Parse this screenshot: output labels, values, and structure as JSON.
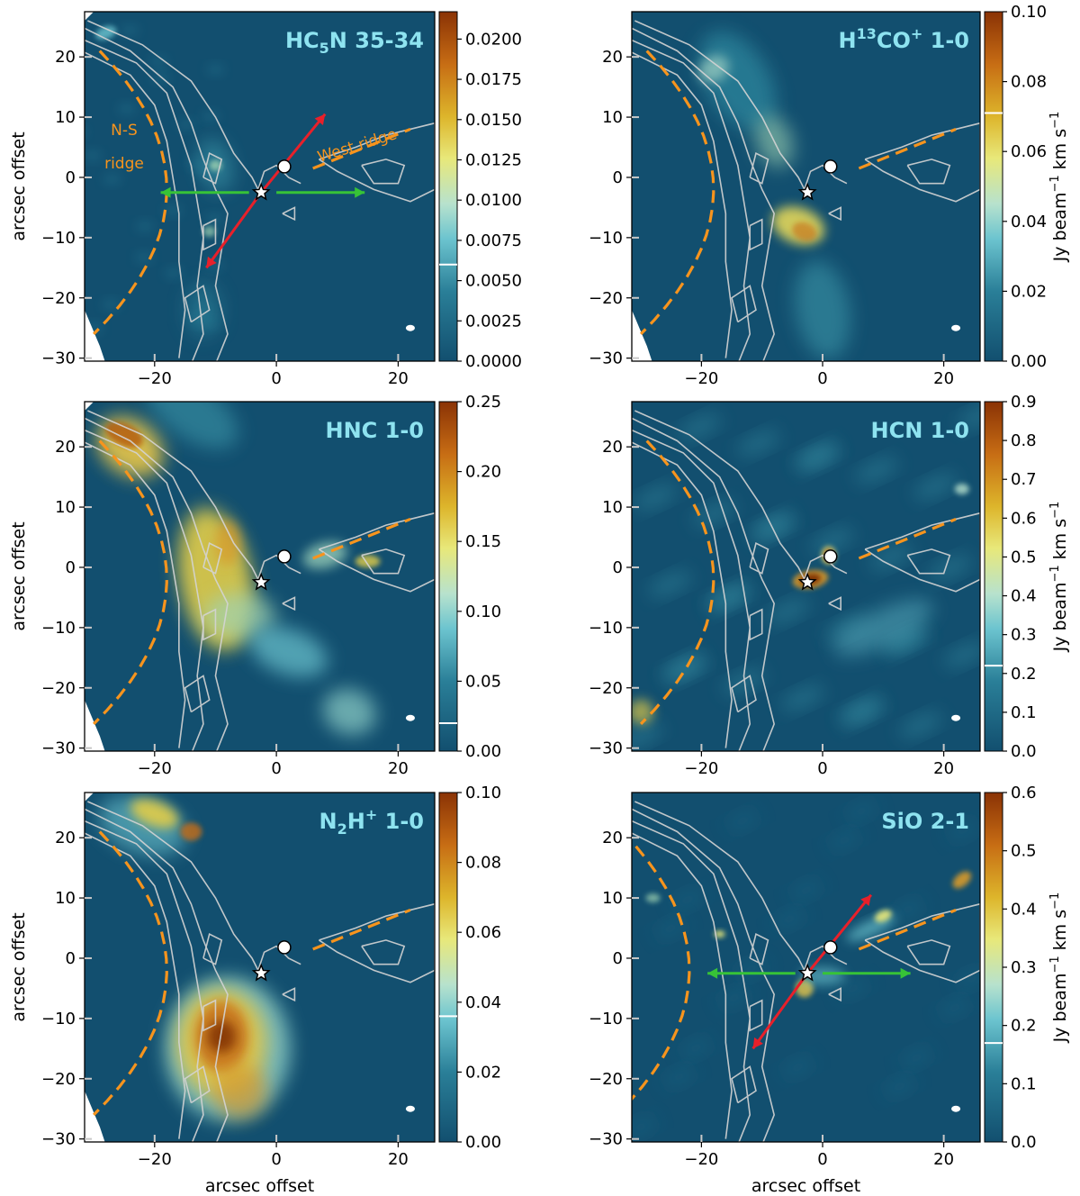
{
  "chart_data": [
    {
      "type": "heatmap",
      "title": "HC",
      "title_sub": "5",
      "title_tail": "N 35-34",
      "cbar_ticks": [
        "0.0000",
        "0.0025",
        "0.0050",
        "0.0075",
        "0.0100",
        "0.0125",
        "0.0150",
        "0.0175",
        "0.0200"
      ],
      "cbar_values": [
        0,
        0.0025,
        0.005,
        0.0075,
        0.01,
        0.0125,
        0.015,
        0.0175,
        0.02
      ],
      "cbar_range": [
        0,
        0.0217
      ],
      "noise_marker": 0.006,
      "cbar_label": "",
      "xlabel": "",
      "ylabel": "arcsec offset",
      "x_ticks": [
        "−20",
        "0",
        "20"
      ],
      "y_ticks": [
        "−30",
        "−20",
        "−10",
        "0",
        "10",
        "20"
      ],
      "annotations": [
        "N-S",
        "ridge",
        "West ridge"
      ],
      "outflow_arrows": true,
      "emission": "ridge"
    },
    {
      "type": "heatmap",
      "title": "H",
      "title_sup": "13",
      "title_tail": "CO",
      "title_sup2": "+",
      "title_tail2": " 1-0",
      "cbar_ticks": [
        "0.00",
        "0.02",
        "0.04",
        "0.06",
        "0.08",
        "0.10"
      ],
      "cbar_values": [
        0,
        0.02,
        0.04,
        0.06,
        0.08,
        0.1
      ],
      "cbar_range": [
        0,
        0.1
      ],
      "noise_marker": 0.071,
      "cbar_label": "Jy beam−1 km s−1",
      "xlabel": "",
      "ylabel": "",
      "x_ticks": [
        "−20",
        "0",
        "20"
      ],
      "y_ticks": [
        "−30",
        "−20",
        "−10",
        "0",
        "10",
        "20"
      ],
      "annotations": [],
      "outflow_arrows": false,
      "emission": "h13co"
    },
    {
      "type": "heatmap",
      "title": "HNC 1-0",
      "cbar_ticks": [
        "0.00",
        "0.05",
        "0.10",
        "0.15",
        "0.20",
        "0.25"
      ],
      "cbar_values": [
        0,
        0.05,
        0.1,
        0.15,
        0.2,
        0.25
      ],
      "cbar_range": [
        0,
        0.25
      ],
      "noise_marker": 0.02,
      "cbar_label": "",
      "xlabel": "",
      "ylabel": "arcsec offset",
      "x_ticks": [
        "−20",
        "0",
        "20"
      ],
      "y_ticks": [
        "−30",
        "−20",
        "−10",
        "0",
        "10",
        "20"
      ],
      "annotations": [],
      "outflow_arrows": false,
      "emission": "hnc"
    },
    {
      "type": "heatmap",
      "title": "HCN 1-0",
      "cbar_ticks": [
        "0.0",
        "0.1",
        "0.2",
        "0.3",
        "0.4",
        "0.5",
        "0.6",
        "0.7",
        "0.8",
        "0.9"
      ],
      "cbar_values": [
        0,
        0.1,
        0.2,
        0.3,
        0.4,
        0.5,
        0.6,
        0.7,
        0.8,
        0.9
      ],
      "cbar_range": [
        0,
        0.9
      ],
      "noise_marker": 0.22,
      "cbar_label": "Jy beam−1 km s−1",
      "xlabel": "",
      "ylabel": "",
      "x_ticks": [
        "−20",
        "0",
        "20"
      ],
      "y_ticks": [
        "−30",
        "−20",
        "−10",
        "0",
        "10",
        "20"
      ],
      "annotations": [],
      "outflow_arrows": false,
      "emission": "hcn"
    },
    {
      "type": "heatmap",
      "title": "N",
      "title_sub": "2",
      "title_tail": "H",
      "title_sup2": "+",
      "title_tail2": " 1-0",
      "cbar_ticks": [
        "0.00",
        "0.02",
        "0.04",
        "0.06",
        "0.08",
        "0.10"
      ],
      "cbar_values": [
        0,
        0.02,
        0.04,
        0.06,
        0.08,
        0.1
      ],
      "cbar_range": [
        0,
        0.1
      ],
      "noise_marker": 0.036,
      "cbar_label": "",
      "xlabel": "arcsec offset",
      "ylabel": "arcsec offset",
      "x_ticks": [
        "−20",
        "0",
        "20"
      ],
      "y_ticks": [
        "−30",
        "−20",
        "−10",
        "0",
        "10",
        "20"
      ],
      "annotations": [],
      "outflow_arrows": false,
      "emission": "n2h"
    },
    {
      "type": "heatmap",
      "title": "SiO 2-1",
      "cbar_ticks": [
        "0.0",
        "0.1",
        "0.2",
        "0.3",
        "0.4",
        "0.5",
        "0.6"
      ],
      "cbar_values": [
        0,
        0.1,
        0.2,
        0.3,
        0.4,
        0.5,
        0.6
      ],
      "cbar_range": [
        0,
        0.6
      ],
      "noise_marker": 0.17,
      "cbar_label": "Jy beam−1 km s−1",
      "xlabel": "arcsec offset",
      "ylabel": "",
      "x_ticks": [
        "−20",
        "0",
        "20"
      ],
      "y_ticks": [
        "−30",
        "−20",
        "−10",
        "0",
        "10",
        "20"
      ],
      "annotations": [],
      "outflow_arrows": true,
      "emission": "sio"
    }
  ],
  "shared": {
    "x_range": [
      -31.5,
      26
    ],
    "y_range": [
      -30.5,
      27.5
    ],
    "cbar_label_text": "Jy beam",
    "cbar_label_exp": "−1",
    "cbar_label_tail": " km s",
    "cbar_label_exp2": "−1"
  },
  "colors": {
    "background": "#124f6f",
    "accent_orange": "#f7941d",
    "contour": "#d4d4d4",
    "arrow_red": "#e8202a",
    "arrow_green": "#37c337",
    "title": "#8ee3f0"
  }
}
